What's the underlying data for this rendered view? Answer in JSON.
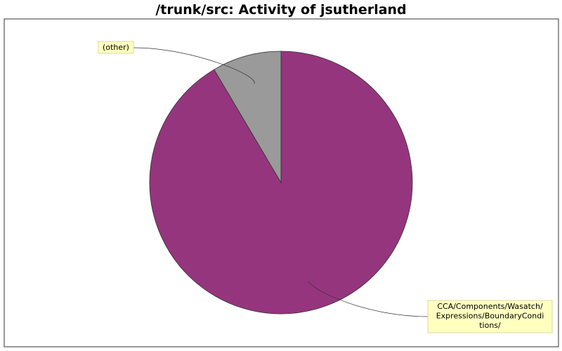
{
  "chart_data": {
    "type": "pie",
    "title": "/trunk/src: Activity of jsutherland",
    "slices": [
      {
        "label": "CCA/Components/Wasatch/Expressions/BoundaryConditions/",
        "label_lines": [
          "CCA/Components/Wasatch/",
          "Expressions/BoundaryCondi",
          "tions/"
        ],
        "value": 91.5,
        "color": "#95357e"
      },
      {
        "label": "(other)",
        "label_lines": [
          "(other)"
        ],
        "value": 8.5,
        "color": "#9a9a9a"
      }
    ],
    "label_box_color": "#ffffc0",
    "legend": "none"
  }
}
